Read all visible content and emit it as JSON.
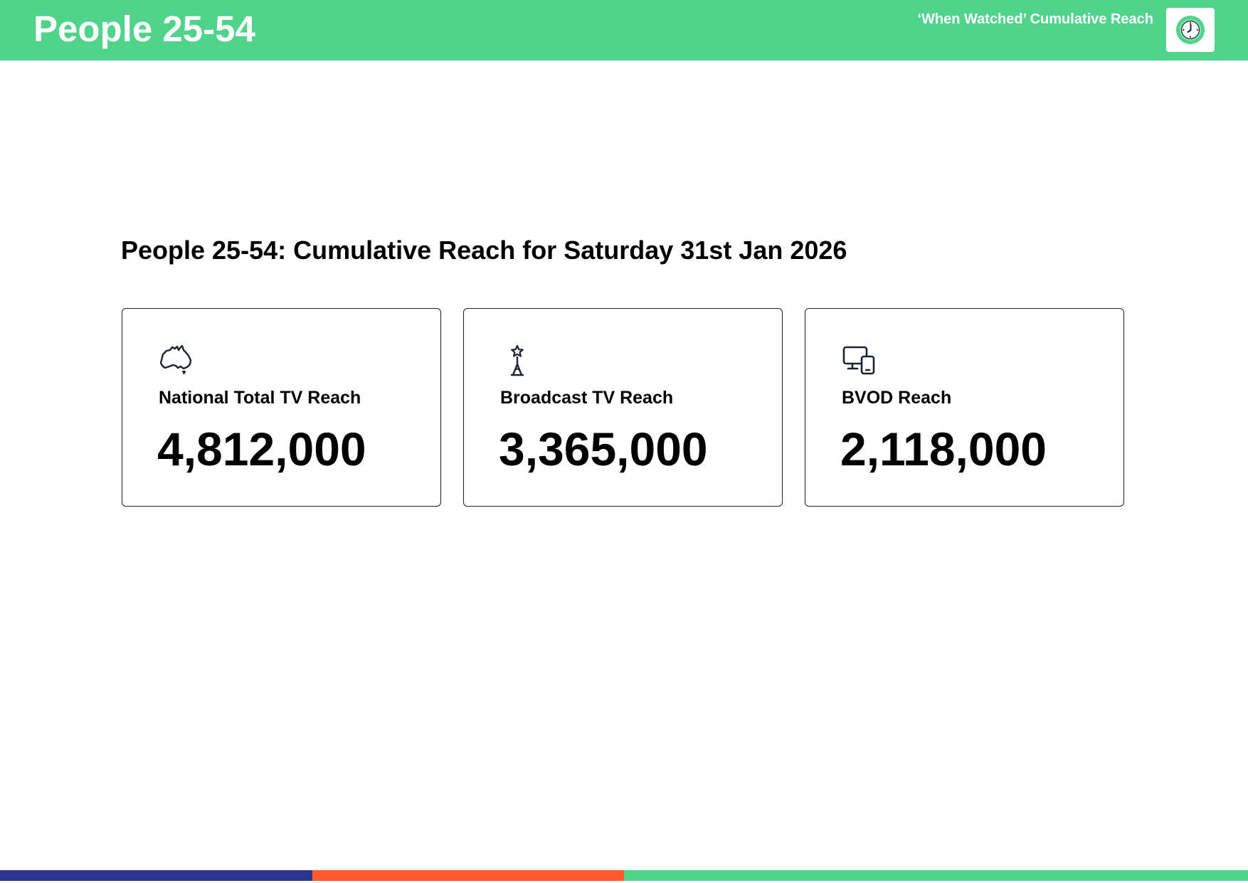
{
  "header": {
    "title": "People 25-54",
    "subtitle": "‘When Watched’ Cumulative Reach",
    "badge_icon": "clock-icon",
    "color": "#50D38A"
  },
  "main": {
    "title": "People 25-54: Cumulative Reach for Saturday 31st Jan 2026"
  },
  "cards": [
    {
      "icon": "australia-map-icon",
      "label": "National Total TV Reach",
      "value": "4,812,000"
    },
    {
      "icon": "broadcast-tower-icon",
      "label": "Broadcast TV Reach",
      "value": "3,365,000"
    },
    {
      "icon": "devices-icon",
      "label": "BVOD Reach",
      "value": "2,118,000"
    }
  ],
  "footer": {
    "segments": [
      "#2B3590",
      "#FF5A2D",
      "#50D38A",
      "#50D38A"
    ]
  }
}
